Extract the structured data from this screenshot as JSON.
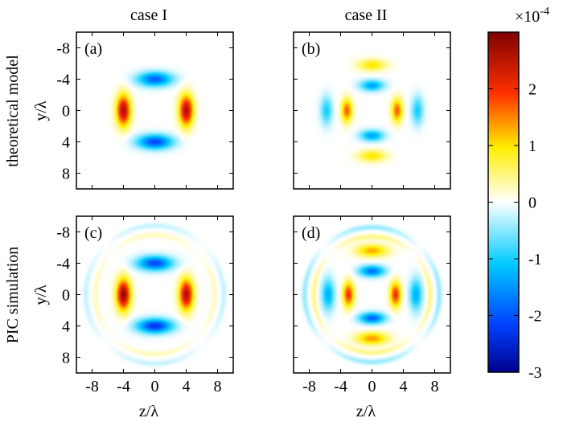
{
  "figure": {
    "col_titles": [
      "case I",
      "case II"
    ],
    "row_titles": [
      "theoretical model",
      "PIC simulation"
    ],
    "xlabel": "z/λ",
    "ylabel": "y/λ"
  },
  "colorbar": {
    "exponent_label": "×10",
    "exponent": "-4",
    "ticks": [
      {
        "value": 2,
        "label": "2"
      },
      {
        "value": 1,
        "label": "1"
      },
      {
        "value": 0,
        "label": "0"
      },
      {
        "value": -1,
        "label": "-1"
      },
      {
        "value": -2,
        "label": "-2"
      },
      {
        "value": -3,
        "label": "-3"
      }
    ],
    "range": [
      -3,
      3
    ],
    "colormap": "jet-like diverging (white at 0)",
    "stops": [
      {
        "t": 0.0,
        "color": "#00008f"
      },
      {
        "t": 0.14,
        "color": "#0040ff"
      },
      {
        "t": 0.32,
        "color": "#00ccff"
      },
      {
        "t": 0.5,
        "color": "#ffffff"
      },
      {
        "t": 0.66,
        "color": "#ffee00"
      },
      {
        "t": 0.82,
        "color": "#ff3000"
      },
      {
        "t": 1.0,
        "color": "#800000"
      }
    ]
  },
  "chart_data": {
    "type": "heatmap",
    "xlim": [
      -10,
      10
    ],
    "ylim": [
      -10,
      10
    ],
    "xticks": [
      -8,
      -4,
      0,
      4,
      8
    ],
    "yticks": [
      -8,
      -4,
      0,
      4,
      8
    ],
    "y_axis_reversed": true,
    "xlabel": "z/λ",
    "ylabel": "y/λ",
    "panels": [
      {
        "label": "(a)",
        "row": 0,
        "col": 0,
        "show_xaxis": false,
        "show_yaxis": true,
        "blobs": [
          {
            "z": 0,
            "y": -4,
            "rz": 2.2,
            "ry": 0.9,
            "v": -1.9
          },
          {
            "z": 0,
            "y": 4,
            "rz": 2.2,
            "ry": 0.9,
            "v": -2.1
          },
          {
            "z": -4,
            "y": 0,
            "rz": 0.9,
            "ry": 2.0,
            "v": 2.6
          },
          {
            "z": 4,
            "y": 0,
            "rz": 0.9,
            "ry": 2.0,
            "v": 2.6
          }
        ],
        "rings": []
      },
      {
        "label": "(b)",
        "row": 0,
        "col": 1,
        "show_xaxis": false,
        "show_yaxis": false,
        "blobs": [
          {
            "z": 0,
            "y": -5.8,
            "rz": 1.8,
            "ry": 0.75,
            "v": 1.0
          },
          {
            "z": 0,
            "y": 5.8,
            "rz": 1.8,
            "ry": 0.75,
            "v": 1.0
          },
          {
            "z": 0,
            "y": -3.2,
            "rz": 1.5,
            "ry": 0.7,
            "v": -1.4
          },
          {
            "z": 0,
            "y": 3.2,
            "rz": 1.5,
            "ry": 0.7,
            "v": -1.4
          },
          {
            "z": -3.2,
            "y": 0,
            "rz": 0.7,
            "ry": 1.5,
            "v": 1.7
          },
          {
            "z": 3.2,
            "y": 0,
            "rz": 0.7,
            "ry": 1.5,
            "v": 1.7
          },
          {
            "z": -5.8,
            "y": 0,
            "rz": 0.75,
            "ry": 1.8,
            "v": -1.0
          },
          {
            "z": 5.8,
            "y": 0,
            "rz": 0.75,
            "ry": 1.8,
            "v": -1.0
          }
        ],
        "rings": []
      },
      {
        "label": "(c)",
        "row": 1,
        "col": 0,
        "show_xaxis": true,
        "show_yaxis": true,
        "blobs": [
          {
            "z": 0,
            "y": -4,
            "rz": 2.2,
            "ry": 0.9,
            "v": -2.1
          },
          {
            "z": 0,
            "y": 4,
            "rz": 2.2,
            "ry": 0.9,
            "v": -2.3
          },
          {
            "z": -4,
            "y": 0,
            "rz": 0.9,
            "ry": 2.0,
            "v": 2.8
          },
          {
            "z": 4,
            "y": 0,
            "rz": 0.9,
            "ry": 2.0,
            "v": 2.6
          }
        ],
        "rings": [
          {
            "r": 7.6,
            "v": 0.25
          },
          {
            "r": 8.8,
            "v": -0.25
          }
        ]
      },
      {
        "label": "(d)",
        "row": 1,
        "col": 1,
        "show_xaxis": true,
        "show_yaxis": false,
        "blobs": [
          {
            "z": 0,
            "y": -5.6,
            "rz": 2.0,
            "ry": 0.8,
            "v": 1.3
          },
          {
            "z": 0,
            "y": 5.6,
            "rz": 2.0,
            "ry": 0.8,
            "v": 1.4
          },
          {
            "z": 0,
            "y": -3.0,
            "rz": 1.6,
            "ry": 0.7,
            "v": -1.8
          },
          {
            "z": 0,
            "y": 3.0,
            "rz": 1.6,
            "ry": 0.7,
            "v": -1.9
          },
          {
            "z": -3.0,
            "y": 0,
            "rz": 0.7,
            "ry": 1.6,
            "v": 2.0
          },
          {
            "z": 3.0,
            "y": 0,
            "rz": 0.7,
            "ry": 1.6,
            "v": 2.0
          },
          {
            "z": -5.6,
            "y": 0,
            "rz": 0.8,
            "ry": 2.0,
            "v": -1.3
          },
          {
            "z": 5.6,
            "y": 0,
            "rz": 0.8,
            "ry": 2.0,
            "v": -1.3
          }
        ],
        "rings": [
          {
            "r": 7.4,
            "v": 0.45
          },
          {
            "r": 8.6,
            "v": -0.45
          }
        ]
      }
    ]
  }
}
